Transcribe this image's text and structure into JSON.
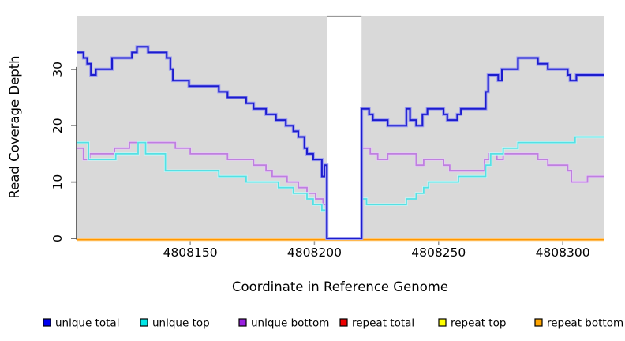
{
  "chart_data": {
    "type": "line",
    "subtype": "step-coverage",
    "title": "",
    "xlabel": "Coordinate in Reference Genome",
    "ylabel": "Read Coverage Depth",
    "xlim": [
      4808104.2,
      4808316.5
    ],
    "ylim": [
      0,
      39.5
    ],
    "xticks": [
      4808150,
      4808200,
      4808250,
      4808300
    ],
    "xtick_labels": [
      "4808150",
      "4808200",
      "4808250",
      "4808300"
    ],
    "yticks": [
      0,
      10,
      20,
      30
    ],
    "ytick_labels": [
      "0",
      "10",
      "20",
      "30"
    ],
    "plot_bg": "#d9d9d9",
    "page_bg": "#ffffff",
    "grid": false,
    "legend_position": "bottom",
    "gap_region": {
      "x_start": 4808205,
      "x_end": 4808219,
      "fill": "#ffffff",
      "top_border": "#999999"
    },
    "series": [
      {
        "name": "unique total",
        "legend_color": "#0000f0",
        "line_color": "#1c1ccd",
        "halo_color": "#9f9ff0",
        "steps": [
          [
            4808104.2,
            33
          ],
          [
            4808107,
            32
          ],
          [
            4808108.5,
            31
          ],
          [
            4808110,
            29
          ],
          [
            4808112,
            30
          ],
          [
            4808118.5,
            32
          ],
          [
            4808126.5,
            33
          ],
          [
            4808128.5,
            34
          ],
          [
            4808133,
            33
          ],
          [
            4808140.5,
            32
          ],
          [
            4808142,
            30
          ],
          [
            4808143,
            28
          ],
          [
            4808149.5,
            27
          ],
          [
            4808161.5,
            26
          ],
          [
            4808165,
            25
          ],
          [
            4808172.5,
            24
          ],
          [
            4808175.5,
            23
          ],
          [
            4808180.5,
            22
          ],
          [
            4808184.5,
            21
          ],
          [
            4808188.5,
            20
          ],
          [
            4808191.5,
            19
          ],
          [
            4808193.5,
            18
          ],
          [
            4808196,
            16
          ],
          [
            4808197,
            15
          ],
          [
            4808199.5,
            14
          ],
          [
            4808203,
            11
          ],
          [
            4808204,
            13
          ],
          [
            4808205,
            0
          ],
          [
            4808219,
            23
          ],
          [
            4808222,
            22
          ],
          [
            4808223.5,
            21
          ],
          [
            4808229.5,
            20
          ],
          [
            4808237,
            23
          ],
          [
            4808238.5,
            21
          ],
          [
            4808241,
            20
          ],
          [
            4808243.5,
            22
          ],
          [
            4808245.5,
            23
          ],
          [
            4808252,
            22
          ],
          [
            4808253.5,
            21
          ],
          [
            4808257.5,
            22
          ],
          [
            4808259,
            23
          ],
          [
            4808269,
            26
          ],
          [
            4808270,
            29
          ],
          [
            4808274,
            28
          ],
          [
            4808275.5,
            30
          ],
          [
            4808282,
            32
          ],
          [
            4808290,
            31
          ],
          [
            4808294,
            30
          ],
          [
            4808302,
            29
          ],
          [
            4808303,
            28
          ],
          [
            4808305.5,
            29
          ]
        ]
      },
      {
        "name": "unique top",
        "legend_color": "#00e6e6",
        "line_color": "#55e0e4",
        "halo_color": "#c8f6f6",
        "steps": [
          [
            4808104.2,
            17
          ],
          [
            4808109,
            14
          ],
          [
            4808120,
            15
          ],
          [
            4808129,
            17
          ],
          [
            4808132,
            15
          ],
          [
            4808140,
            12
          ],
          [
            4808161.5,
            11
          ],
          [
            4808172.5,
            10
          ],
          [
            4808185.5,
            9
          ],
          [
            4808191.5,
            8
          ],
          [
            4808197,
            7
          ],
          [
            4808199.5,
            6
          ],
          [
            4808203,
            5
          ],
          [
            4808205,
            0
          ],
          [
            4808219,
            7
          ],
          [
            4808221,
            6
          ],
          [
            4808237,
            7
          ],
          [
            4808241,
            8
          ],
          [
            4808244,
            9
          ],
          [
            4808246,
            10
          ],
          [
            4808258,
            11
          ],
          [
            4808269,
            13
          ],
          [
            4808271,
            15
          ],
          [
            4808276,
            16
          ],
          [
            4808282,
            17
          ],
          [
            4808305,
            18
          ]
        ]
      },
      {
        "name": "unique bottom",
        "legend_color": "#9a20e0",
        "line_color": "#bf7fdf",
        "halo_color": "#e5cdf4",
        "steps": [
          [
            4808104.2,
            16
          ],
          [
            4808107,
            14
          ],
          [
            4808109.5,
            15
          ],
          [
            4808119.5,
            16
          ],
          [
            4808125.5,
            17
          ],
          [
            4808144,
            16
          ],
          [
            4808150,
            15
          ],
          [
            4808165,
            14
          ],
          [
            4808175.5,
            13
          ],
          [
            4808180.5,
            12
          ],
          [
            4808183,
            11
          ],
          [
            4808189,
            10
          ],
          [
            4808193.5,
            9
          ],
          [
            4808197,
            8
          ],
          [
            4808200.5,
            7
          ],
          [
            4808203.5,
            6
          ],
          [
            4808205,
            0
          ],
          [
            4808219,
            16
          ],
          [
            4808222.5,
            15
          ],
          [
            4808225.5,
            14
          ],
          [
            4808229.5,
            15
          ],
          [
            4808241,
            13
          ],
          [
            4808244,
            14
          ],
          [
            4808252,
            13
          ],
          [
            4808254.5,
            12
          ],
          [
            4808268.5,
            14
          ],
          [
            4808270.5,
            15
          ],
          [
            4808273.5,
            14
          ],
          [
            4808276,
            15
          ],
          [
            4808290,
            14
          ],
          [
            4808294,
            13
          ],
          [
            4808302,
            12
          ],
          [
            4808303.5,
            10
          ],
          [
            4808310,
            11
          ]
        ]
      },
      {
        "name": "repeat total",
        "legend_color": "#ee0000",
        "line_color": "#ee2222",
        "halo_color": "#f8b0b0",
        "steps": [
          [
            4808104.2,
            0
          ]
        ]
      },
      {
        "name": "repeat top",
        "legend_color": "#ffff00",
        "line_color": "#f0f000",
        "halo_color": "#ffffa8",
        "steps": [
          [
            4808104.2,
            0
          ]
        ]
      },
      {
        "name": "repeat bottom",
        "legend_color": "#ffa500",
        "line_color": "#ff9800",
        "halo_color": "#ffd9a0",
        "steps": [
          [
            4808104.2,
            0
          ]
        ]
      }
    ],
    "draw_order": [
      3,
      4,
      5,
      2,
      1,
      0
    ]
  }
}
